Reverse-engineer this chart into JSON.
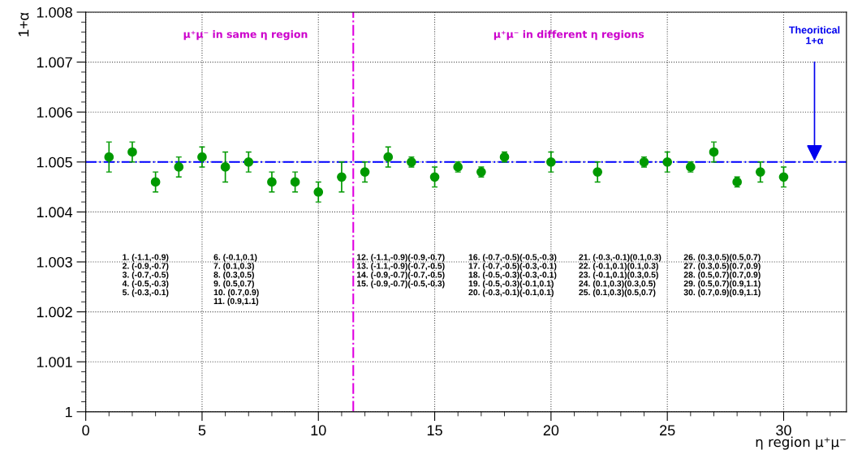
{
  "chart_data": {
    "type": "scatter",
    "xlabel": "η region μ⁺μ⁻",
    "ylabel": "1+α",
    "xlim": [
      0,
      32.7
    ],
    "xticks": [
      0,
      5,
      10,
      15,
      20,
      25,
      30
    ],
    "ylim": [
      1,
      1.008
    ],
    "yticks": [
      1,
      1.001,
      1.002,
      1.003,
      1.004,
      1.005,
      1.006,
      1.007,
      1.008
    ],
    "grid": true,
    "marker": "circle",
    "series": [
      {
        "color": "#009900",
        "x": [
          1,
          2,
          3,
          4,
          5,
          6,
          7,
          8,
          9,
          10,
          11,
          12,
          13,
          14,
          15,
          16,
          17,
          18,
          20,
          22,
          24,
          25,
          26,
          27,
          28,
          29,
          30
        ],
        "values": [
          1.0051,
          1.0052,
          1.0046,
          1.0049,
          1.0051,
          1.0049,
          1.005,
          1.0046,
          1.0046,
          1.0044,
          1.0047,
          1.0048,
          1.0051,
          1.005,
          1.0047,
          1.0049,
          1.0048,
          1.0051,
          1.005,
          1.0048,
          1.005,
          1.005,
          1.0049,
          1.0052,
          1.0046,
          1.0048,
          1.0047
        ],
        "errors": [
          0.0003,
          0.0002,
          0.0002,
          0.0002,
          0.0002,
          0.0003,
          0.0002,
          0.0002,
          0.0002,
          0.0002,
          0.0003,
          0.0002,
          0.0002,
          0.0001,
          0.0002,
          0.0001,
          0.0001,
          0.0001,
          0.0002,
          0.0002,
          0.0001,
          0.0002,
          0.0001,
          0.0002,
          0.0001,
          0.0002,
          0.0002
        ]
      }
    ],
    "ref_lines": [
      {
        "axis": "y",
        "value": 1.005,
        "color": "#0000ff",
        "line_style": "dashdot"
      },
      {
        "axis": "x",
        "value": 11.5,
        "color": "#e000e0",
        "line_style": "dashdot"
      }
    ],
    "annotations": [
      "μ⁺μ⁻ in same η region",
      "μ⁺μ⁻ in different η regions",
      "1. (-1.1,-0.9)\n2. (-0.9,-0.7)\n3. (-0.7,-0.5)\n4. (-0.5,-0.3)\n5. (-0.3,-0.1)",
      "6. (-0.1,0.1)\n7. (0.1,0.3)\n8. (0.3,0.5)\n9. (0.5,0.7)\n10. (0.7,0.9)\n11. (0.9,1.1)",
      "12. (-1.1,-0.9)(-0.9,-0.7)\n13. (-1.1,-0.9)(-0.7,-0.5)\n14. (-0.9,-0.7)(-0.7,-0.5)\n15. (-0.9,-0.7)(-0.5,-0.3)",
      "16. (-0.7,-0.5)(-0.5,-0.3)\n17. (-0.7,-0.5)(-0.3,-0.1)\n18. (-0.5,-0.3)(-0.3,-0.1)\n19. (-0.5,-0.3)(-0.1,0.1)\n20. (-0.3,-0.1)(-0.1,0.1)",
      "21. (-0.3,-0.1)(0.1,0.3)\n22. (-0.1,0.1)(0.1,0.3)\n23. (-0.1,0.1)(0.3,0.5)\n24. (0.1,0.3)(0.3,0.5)\n25. (0.1,0.3)(0.5,0.7)",
      "26. (0.3,0.5)(0.5,0.7)\n27. (0.3,0.5)(0.7,0.9)\n28. (0.5,0.7)(0.7,0.9)\n29. (0.5,0.7)(0.9,1.1)\n30. (0.7,0.9)(0.9,1.1)",
      "Theoritical\n1+α"
    ]
  }
}
